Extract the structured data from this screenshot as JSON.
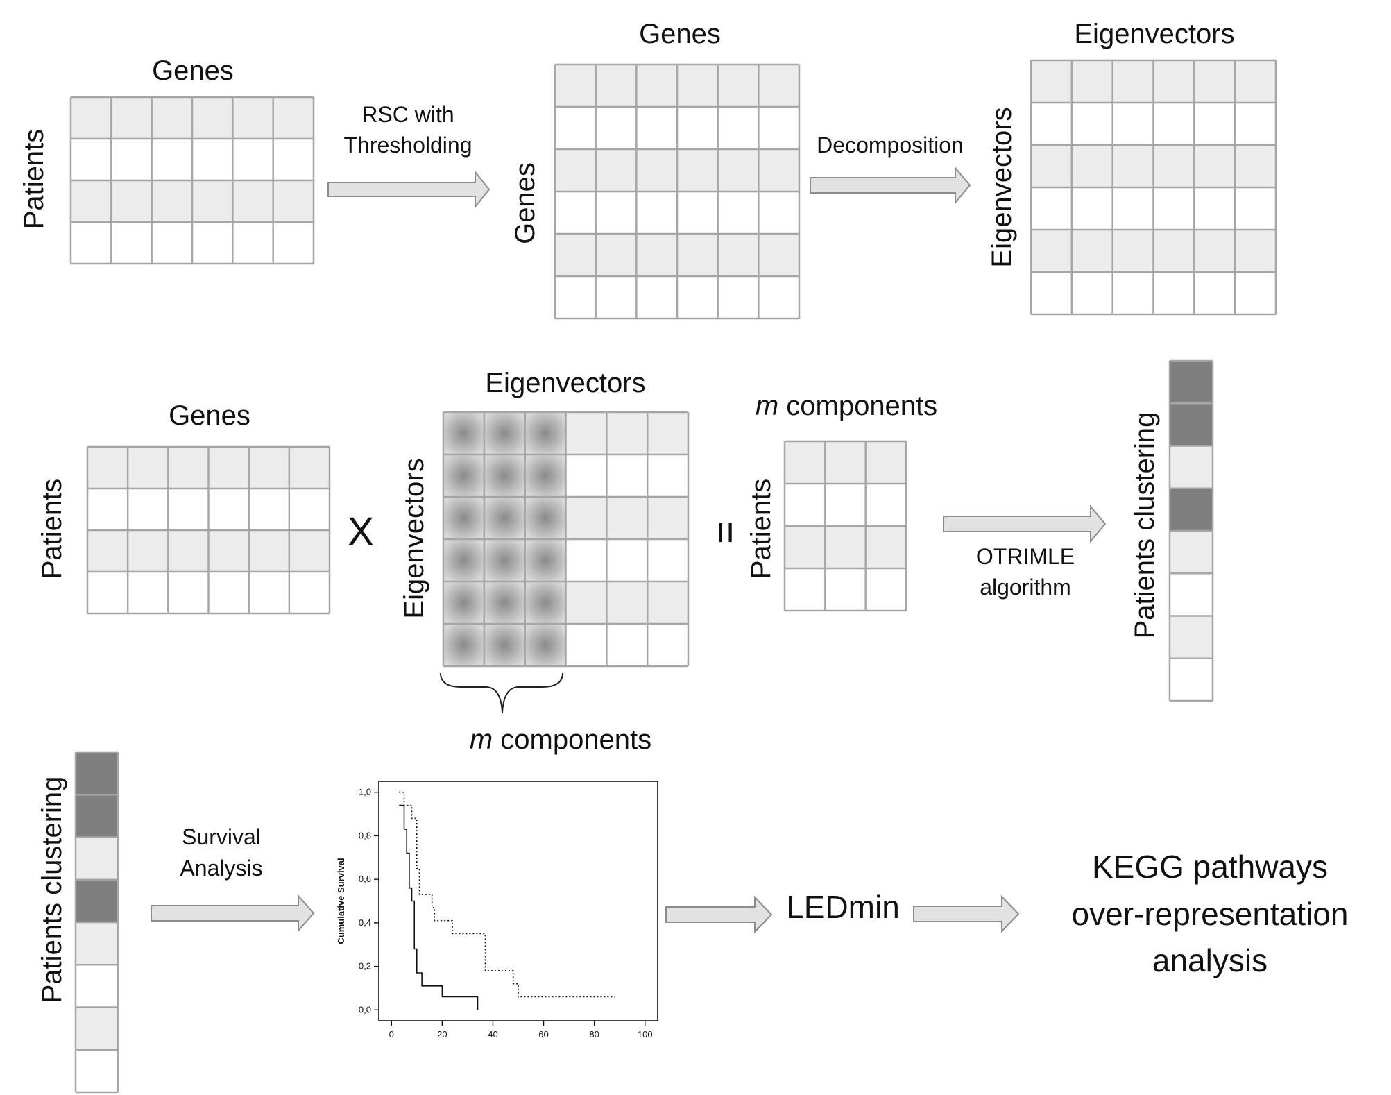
{
  "labels": {
    "genes": "Genes",
    "patients": "Patients",
    "eigenvectors": "Eigenvectors",
    "rsc_line1": "RSC with",
    "rsc_line2": "Thresholding",
    "decomposition": "Decomposition",
    "multiply": "X",
    "equals": "=",
    "m": "m",
    "components": " components",
    "otrimle_line1": "OTRIMLE",
    "otrimle_line2": "algorithm",
    "patients_clustering": "Patients clustering",
    "survival_line1": "Survival",
    "survival_line2": "Analysis",
    "ledmin": "LEDmin",
    "kegg_line1": "KEGG pathways",
    "kegg_line2": "over-representation",
    "kegg_line3": "analysis"
  },
  "colors": {
    "cell_light": "#ececec",
    "cell_white": "#ffffff",
    "cell_dark": "#7f7f7f",
    "grid": "#a6a6a6",
    "arrow_fill": "#e2e2e2",
    "arrow_stroke": "#8c8c8c"
  },
  "clustering_pattern": [
    "dark",
    "dark",
    "light",
    "dark",
    "light",
    "white",
    "light",
    "white"
  ],
  "chart_data": {
    "type": "line",
    "xlabel": "",
    "ylabel": "Cumulative Survival",
    "xlim": [
      -5,
      105
    ],
    "ylim": [
      -0.05,
      1.05
    ],
    "x_ticks": [
      "0",
      "20",
      "40",
      "60",
      "80",
      "100"
    ],
    "y_ticks": [
      "0,0",
      "0,2",
      "0,4",
      "0,6",
      "0,8",
      "1,0"
    ],
    "series": [
      {
        "style": "solid",
        "points": [
          [
            3,
            0.94
          ],
          [
            5,
            0.94
          ],
          [
            5,
            0.83
          ],
          [
            6,
            0.83
          ],
          [
            6,
            0.72
          ],
          [
            7,
            0.72
          ],
          [
            7,
            0.56
          ],
          [
            8,
            0.56
          ],
          [
            8,
            0.5
          ],
          [
            9,
            0.5
          ],
          [
            9,
            0.28
          ],
          [
            10,
            0.28
          ],
          [
            10,
            0.17
          ],
          [
            12,
            0.17
          ],
          [
            12,
            0.11
          ],
          [
            20,
            0.11
          ],
          [
            20,
            0.06
          ],
          [
            28,
            0.06
          ],
          [
            28,
            0.06
          ],
          [
            34,
            0.06
          ],
          [
            34,
            0.0
          ]
        ]
      },
      {
        "style": "dotted",
        "points": [
          [
            3,
            1.0
          ],
          [
            5,
            1.0
          ],
          [
            5,
            0.94
          ],
          [
            8,
            0.94
          ],
          [
            8,
            0.88
          ],
          [
            10,
            0.88
          ],
          [
            10,
            0.65
          ],
          [
            11,
            0.65
          ],
          [
            11,
            0.53
          ],
          [
            16,
            0.53
          ],
          [
            16,
            0.47
          ],
          [
            17,
            0.47
          ],
          [
            17,
            0.41
          ],
          [
            24,
            0.41
          ],
          [
            24,
            0.35
          ],
          [
            37,
            0.35
          ],
          [
            37,
            0.18
          ],
          [
            48,
            0.18
          ],
          [
            48,
            0.12
          ],
          [
            50,
            0.12
          ],
          [
            50,
            0.06
          ],
          [
            88,
            0.06
          ]
        ]
      }
    ]
  }
}
